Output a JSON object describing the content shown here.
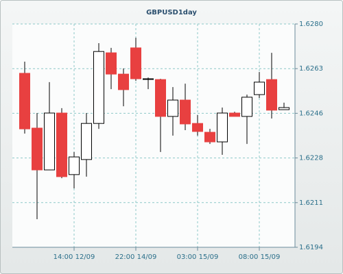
{
  "chart_data": {
    "type": "candlestick",
    "title": "GBPUSD1day",
    "categories": [
      null,
      null,
      null,
      null,
      "14:00 12/09",
      null,
      null,
      null,
      null,
      "22:00 14/09",
      null,
      null,
      null,
      null,
      "03:00 15/09",
      null,
      null,
      null,
      null,
      "08:00 15/09",
      null,
      null
    ],
    "open": [
      1.6261,
      1.62399,
      1.62238,
      1.62457,
      1.6222,
      1.62278,
      1.62417,
      1.62689,
      1.62607,
      1.62708,
      1.62589,
      1.62586,
      1.62444,
      1.62507,
      1.62417,
      1.62383,
      1.62346,
      1.62457,
      1.62444,
      1.62528,
      1.62586,
      1.6247
    ],
    "high": [
      1.62655,
      1.62457,
      1.62576,
      1.62476,
      1.62307,
      1.62457,
      1.62726,
      1.62708,
      1.62629,
      1.62747,
      1.62594,
      1.62589,
      1.62557,
      1.6257,
      1.62449,
      1.62396,
      1.62478,
      1.62462,
      1.62528,
      1.62615,
      1.62689,
      1.62497
    ],
    "low": [
      1.62378,
      1.62048,
      1.62238,
      1.62206,
      1.62167,
      1.62212,
      1.62396,
      1.62549,
      1.62483,
      1.62581,
      1.62549,
      1.62307,
      1.6237,
      1.62391,
      1.6237,
      1.62338,
      1.62296,
      1.62444,
      1.62338,
      1.62515,
      1.62436,
      1.6247
    ],
    "close": [
      1.62396,
      1.62238,
      1.62457,
      1.62212,
      1.62288,
      1.62417,
      1.62694,
      1.62607,
      1.62547,
      1.62589,
      1.62589,
      1.62444,
      1.62507,
      1.62415,
      1.62386,
      1.62346,
      1.62457,
      1.62444,
      1.62518,
      1.62576,
      1.62468,
      1.62478
    ],
    "up_color": "#ffffff",
    "down_color": "#e84040",
    "ylim": [
      1.6194,
      1.628
    ],
    "yticks": [
      {
        "value": 1.6194,
        "label": "1.6194"
      },
      {
        "value": 1.62112,
        "label": "1.6211"
      },
      {
        "value": 1.62284,
        "label": "1.6228"
      },
      {
        "value": 1.62456,
        "label": "1.6246"
      },
      {
        "value": 1.62628,
        "label": "1.6263"
      },
      {
        "value": 1.628,
        "label": "1.6280"
      }
    ],
    "grid": true
  }
}
